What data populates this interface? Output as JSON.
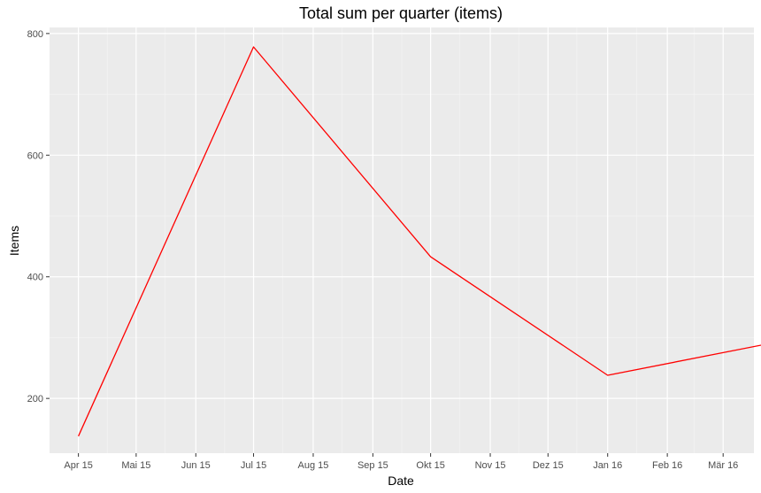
{
  "chart_data": {
    "type": "line",
    "title": "Total sum per quarter (items)",
    "xlabel": "Date",
    "ylabel": "Items",
    "x_ticks": [
      "2015-04-01",
      "2015-05-01",
      "2015-06-01",
      "2015-07-01",
      "2015-08-01",
      "2015-09-01",
      "2015-10-01",
      "2015-11-01",
      "2015-12-01",
      "2016-01-01",
      "2016-02-01",
      "2016-03-01"
    ],
    "x_tick_labels": [
      "Apr 15",
      "Mai 15",
      "Jun 15",
      "Jul 15",
      "Aug 15",
      "Sep 15",
      "Okt 15",
      "Nov 15",
      "Dez 15",
      "Jan 16",
      "Feb 16",
      "Mär 16"
    ],
    "xlim": [
      "2015-03-17",
      "2016-03-17"
    ],
    "y_ticks": [
      200,
      400,
      600,
      800
    ],
    "ylim": [
      110,
      810
    ],
    "grid": true,
    "series": [
      {
        "color": "#ff0000",
        "points": [
          {
            "x": "2015-04-01",
            "y": 138
          },
          {
            "x": "2015-07-01",
            "y": 778
          },
          {
            "x": "2015-10-01",
            "y": 433
          },
          {
            "x": "2016-01-01",
            "y": 238
          },
          {
            "x": "2016-03-31",
            "y": 294
          }
        ]
      }
    ]
  }
}
